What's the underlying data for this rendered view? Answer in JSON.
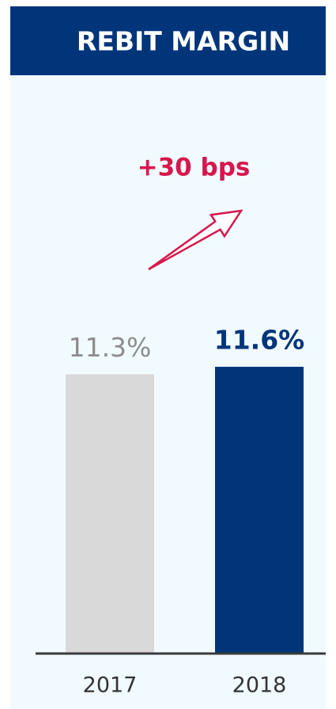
{
  "chart_data": {
    "type": "bar",
    "title": "REBIT MARGIN",
    "annotation": "+30 bps",
    "categories": [
      "2017",
      "2018"
    ],
    "values": [
      11.3,
      11.6
    ],
    "value_labels": [
      "11.3%",
      "11.6%"
    ],
    "colors": [
      "#d9d9d9",
      "#00357a"
    ],
    "value_label_colors": [
      "#8c8c8c",
      "#00357a"
    ]
  }
}
